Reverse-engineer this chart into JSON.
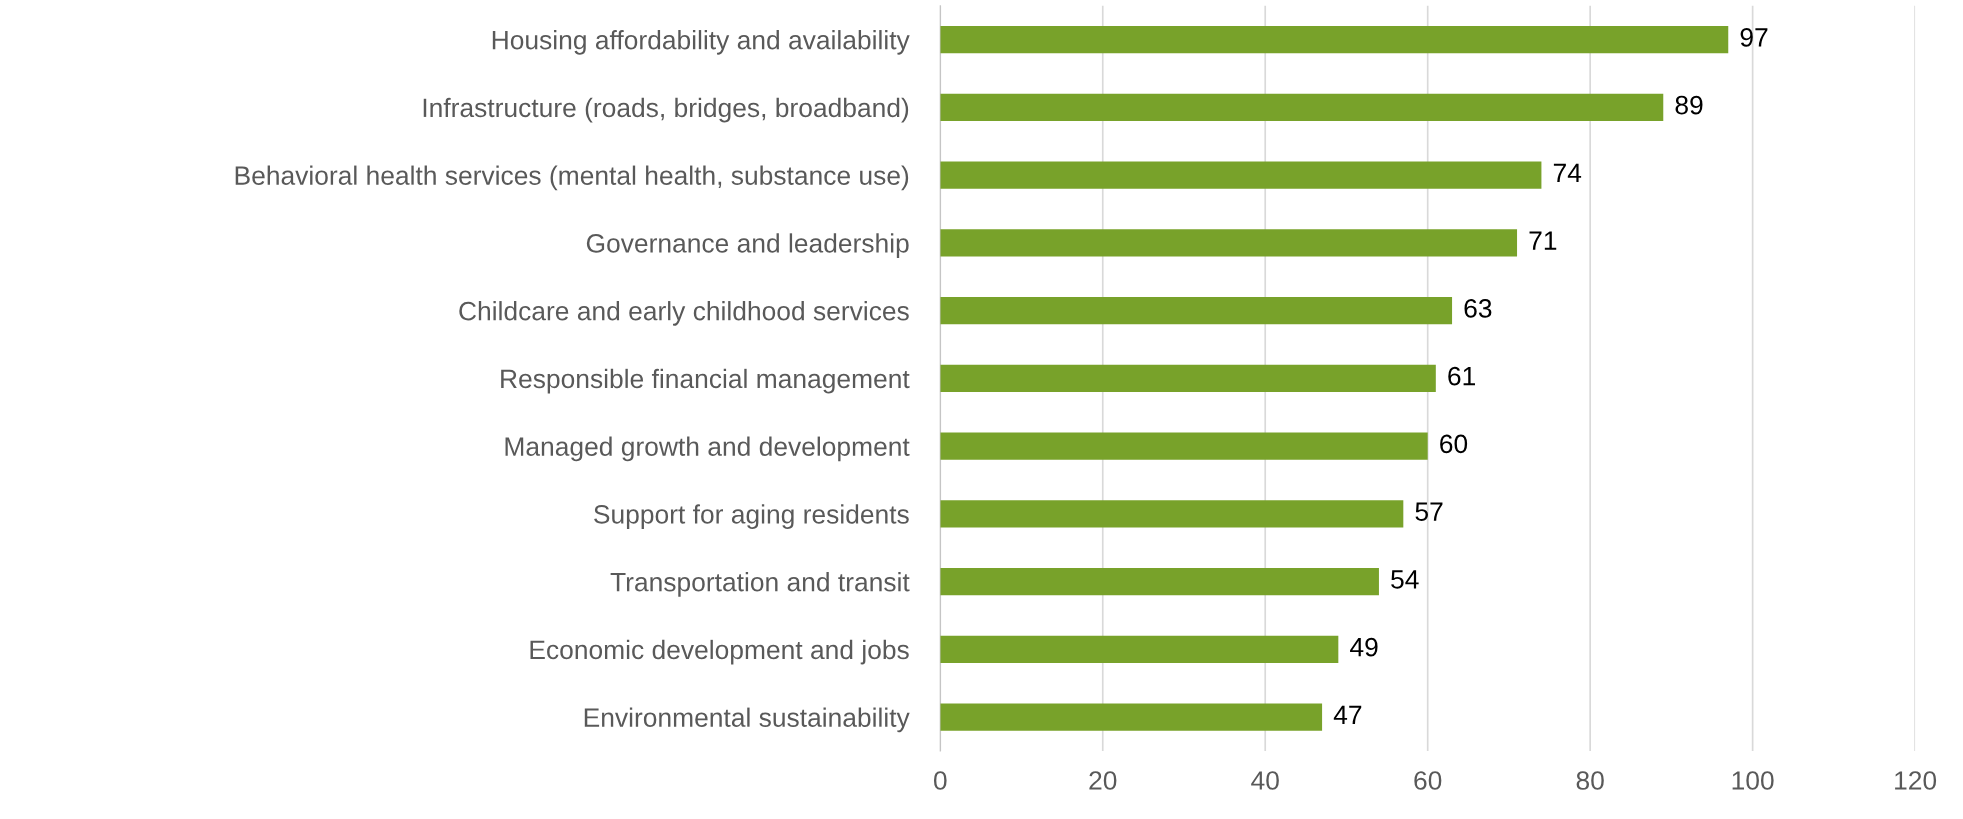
{
  "chart_data": {
    "type": "bar",
    "orientation": "horizontal",
    "categories": [
      "Housing affordability and availability",
      "Infrastructure (roads, bridges, broadband)",
      "Behavioral health services (mental health, substance use)",
      "Governance and leadership",
      "Childcare and early childhood services",
      "Responsible financial management",
      "Managed growth and development",
      "Support for aging residents",
      "Transportation and transit",
      "Economic development and jobs",
      "Environmental sustainability"
    ],
    "values": [
      97,
      89,
      74,
      71,
      63,
      61,
      60,
      57,
      54,
      49,
      47
    ],
    "color": "#78a22a",
    "xlim": [
      0,
      120
    ],
    "xticks": [
      0,
      20,
      40,
      60,
      80,
      100,
      120
    ],
    "grid": "x",
    "data_labels": true
  }
}
